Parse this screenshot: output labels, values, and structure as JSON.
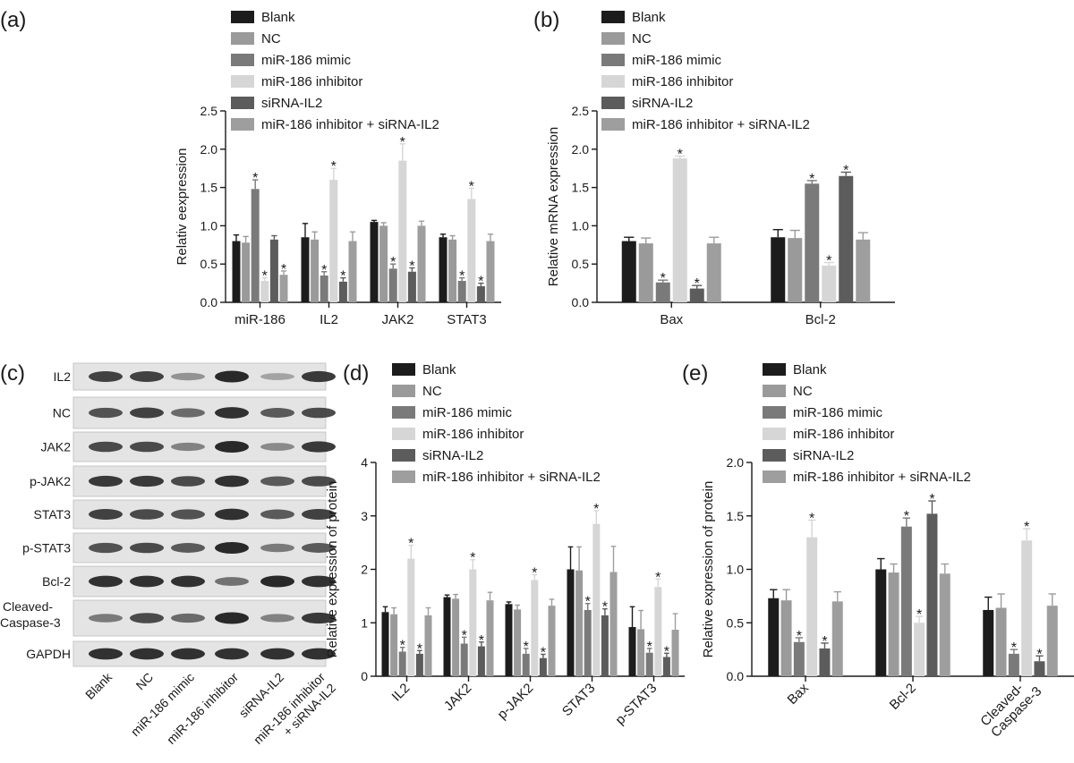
{
  "colors": [
    "#1c1c1c",
    "#9a9a9a",
    "#7a7a7a",
    "#d6d6d6",
    "#5c5c5c",
    "#9e9e9e"
  ],
  "legend": [
    "Blank",
    "NC",
    "miR-186 mimic",
    "miR-186 inhibitor",
    "siRNA-IL2",
    "miR-186 inhibitor + siRNA-IL2"
  ],
  "panels": {
    "a": "(a)",
    "b": "(b)",
    "c": "(c)",
    "d": "(d)",
    "e": "(e)"
  },
  "blot": {
    "rows": [
      "IL2",
      "NC",
      "JAK2",
      "p-JAK2",
      "STAT3",
      "p-STAT3",
      "Bcl-2",
      "Cleaved-Caspase-3",
      "GAPDH"
    ],
    "cleaved_line1": "Cleaved-",
    "cleaved_line2": "Caspase-3",
    "lanes": [
      "Blank",
      "NC",
      "miR-186 mimic",
      "miR-186 inhibitor",
      "siRNA-IL2",
      "miR-186 inhibitor"
    ],
    "last_lane_line2": "+ siRNA-IL2"
  },
  "chart_data": [
    {
      "id": "a",
      "type": "bar",
      "ylabel": "Relativ eexpression",
      "ylim": [
        0,
        2.5
      ],
      "yticks": [
        "0.0",
        "0.5",
        "1.0",
        "1.5",
        "2.0",
        "2.5"
      ],
      "categories": [
        "miR-186",
        "IL2",
        "JAK2",
        "STAT3"
      ],
      "series": [
        {
          "name": "Blank",
          "values": [
            0.8,
            0.85,
            1.05,
            0.85
          ],
          "errors": [
            0.08,
            0.18,
            0.02,
            0.04
          ],
          "sig": [
            false,
            false,
            false,
            false
          ]
        },
        {
          "name": "NC",
          "values": [
            0.78,
            0.82,
            1.0,
            0.82
          ],
          "errors": [
            0.08,
            0.1,
            0.04,
            0.05
          ],
          "sig": [
            false,
            false,
            false,
            false
          ]
        },
        {
          "name": "miR-186 mimic",
          "values": [
            1.48,
            0.35,
            0.44,
            0.28
          ],
          "errors": [
            0.12,
            0.05,
            0.06,
            0.04
          ],
          "sig": [
            true,
            true,
            true,
            true
          ]
        },
        {
          "name": "miR-186 inhibitor",
          "values": [
            0.28,
            1.6,
            1.85,
            1.35
          ],
          "errors": [
            0.04,
            0.15,
            0.22,
            0.14
          ],
          "sig": [
            true,
            true,
            true,
            true
          ]
        },
        {
          "name": "siRNA-IL2",
          "values": [
            0.82,
            0.27,
            0.4,
            0.21
          ],
          "errors": [
            0.05,
            0.05,
            0.05,
            0.04
          ],
          "sig": [
            false,
            true,
            true,
            true
          ]
        },
        {
          "name": "miR-186 inhibitor + siRNA-IL2",
          "values": [
            0.36,
            0.8,
            1.0,
            0.8
          ],
          "errors": [
            0.05,
            0.12,
            0.06,
            0.09
          ],
          "sig": [
            true,
            false,
            false,
            false
          ]
        }
      ]
    },
    {
      "id": "b",
      "type": "bar",
      "ylabel": "Relative mRNA expression",
      "ylim": [
        0,
        2.5
      ],
      "yticks": [
        "0.0",
        "0.5",
        "1.0",
        "1.5",
        "2.0",
        "2.5"
      ],
      "categories": [
        "Bax",
        "Bcl-2"
      ],
      "series": [
        {
          "name": "Blank",
          "values": [
            0.8,
            0.85
          ],
          "errors": [
            0.05,
            0.1
          ],
          "sig": [
            false,
            false
          ]
        },
        {
          "name": "NC",
          "values": [
            0.77,
            0.84
          ],
          "errors": [
            0.07,
            0.1
          ],
          "sig": [
            false,
            false
          ]
        },
        {
          "name": "miR-186 mimic",
          "values": [
            0.26,
            1.55
          ],
          "errors": [
            0.03,
            0.04
          ],
          "sig": [
            true,
            true
          ]
        },
        {
          "name": "miR-186 inhibitor",
          "values": [
            1.88,
            0.48
          ],
          "errors": [
            0.03,
            0.04
          ],
          "sig": [
            true,
            true
          ]
        },
        {
          "name": "siRNA-IL2",
          "values": [
            0.18,
            1.65
          ],
          "errors": [
            0.04,
            0.05
          ],
          "sig": [
            true,
            true
          ]
        },
        {
          "name": "miR-186 inhibitor + siRNA-IL2",
          "values": [
            0.77,
            0.82
          ],
          "errors": [
            0.08,
            0.09
          ],
          "sig": [
            false,
            false
          ]
        }
      ]
    },
    {
      "id": "d",
      "type": "bar",
      "ylabel": "Relative expression of protein",
      "ylim": [
        0,
        4
      ],
      "yticks": [
        "0",
        "1",
        "2",
        "3",
        "4"
      ],
      "categories": [
        "IL2",
        "JAK2",
        "p-JAK2",
        "STAT3",
        "p-STAT3"
      ],
      "series": [
        {
          "name": "Blank",
          "values": [
            1.2,
            1.48,
            1.35,
            2.0,
            0.92
          ],
          "errors": [
            0.1,
            0.04,
            0.04,
            0.42,
            0.38
          ],
          "sig": [
            false,
            false,
            false,
            false,
            false
          ]
        },
        {
          "name": "NC",
          "values": [
            1.16,
            1.45,
            1.25,
            1.98,
            0.88
          ],
          "errors": [
            0.12,
            0.08,
            0.08,
            0.44,
            0.35
          ],
          "sig": [
            false,
            false,
            false,
            false,
            false
          ]
        },
        {
          "name": "miR-186 mimic",
          "values": [
            0.46,
            0.61,
            0.42,
            1.24,
            0.44
          ],
          "errors": [
            0.08,
            0.12,
            0.1,
            0.12,
            0.08
          ],
          "sig": [
            true,
            true,
            true,
            true,
            true
          ]
        },
        {
          "name": "miR-186 inhibitor",
          "values": [
            2.2,
            2.0,
            1.8,
            2.85,
            1.67
          ],
          "errors": [
            0.25,
            0.18,
            0.1,
            0.25,
            0.15
          ],
          "sig": [
            true,
            true,
            true,
            true,
            true
          ]
        },
        {
          "name": "siRNA-IL2",
          "values": [
            0.42,
            0.56,
            0.34,
            1.14,
            0.36
          ],
          "errors": [
            0.06,
            0.08,
            0.07,
            0.12,
            0.07
          ],
          "sig": [
            true,
            true,
            true,
            true,
            true
          ]
        },
        {
          "name": "miR-186 inhibitor + siRNA-IL2",
          "values": [
            1.14,
            1.42,
            1.32,
            1.95,
            0.87
          ],
          "errors": [
            0.14,
            0.15,
            0.12,
            0.48,
            0.3
          ],
          "sig": [
            false,
            false,
            false,
            false,
            false
          ]
        }
      ]
    },
    {
      "id": "e",
      "type": "bar",
      "ylabel": "Relative expression of protein",
      "ylim": [
        0,
        2.0
      ],
      "yticks": [
        "0.0",
        "0.5",
        "1.0",
        "1.5",
        "2.0"
      ],
      "categories": [
        "Bax",
        "Bcl-2",
        "Cleaved-Caspase-3"
      ],
      "category_lines": [
        [
          "Bax"
        ],
        [
          "Bcl-2"
        ],
        [
          "Cleaved-",
          "Caspase-3"
        ]
      ],
      "series": [
        {
          "name": "Blank",
          "values": [
            0.73,
            1.0,
            0.62
          ],
          "errors": [
            0.08,
            0.1,
            0.12
          ],
          "sig": [
            false,
            false,
            false
          ]
        },
        {
          "name": "NC",
          "values": [
            0.71,
            0.97,
            0.64
          ],
          "errors": [
            0.1,
            0.08,
            0.13
          ],
          "sig": [
            false,
            false,
            false
          ]
        },
        {
          "name": "miR-186 mimic",
          "values": [
            0.32,
            1.4,
            0.21
          ],
          "errors": [
            0.04,
            0.08,
            0.04
          ],
          "sig": [
            true,
            true,
            true
          ]
        },
        {
          "name": "miR-186 inhibitor",
          "values": [
            1.3,
            0.5,
            1.27
          ],
          "errors": [
            0.16,
            0.06,
            0.11
          ],
          "sig": [
            true,
            true,
            true
          ]
        },
        {
          "name": "siRNA-IL2",
          "values": [
            0.26,
            1.52,
            0.14
          ],
          "errors": [
            0.05,
            0.12,
            0.05
          ],
          "sig": [
            true,
            true,
            true
          ]
        },
        {
          "name": "miR-186 inhibitor + siRNA-IL2",
          "values": [
            0.7,
            0.96,
            0.66
          ],
          "errors": [
            0.09,
            0.09,
            0.11
          ],
          "sig": [
            false,
            false,
            false
          ]
        }
      ]
    }
  ]
}
